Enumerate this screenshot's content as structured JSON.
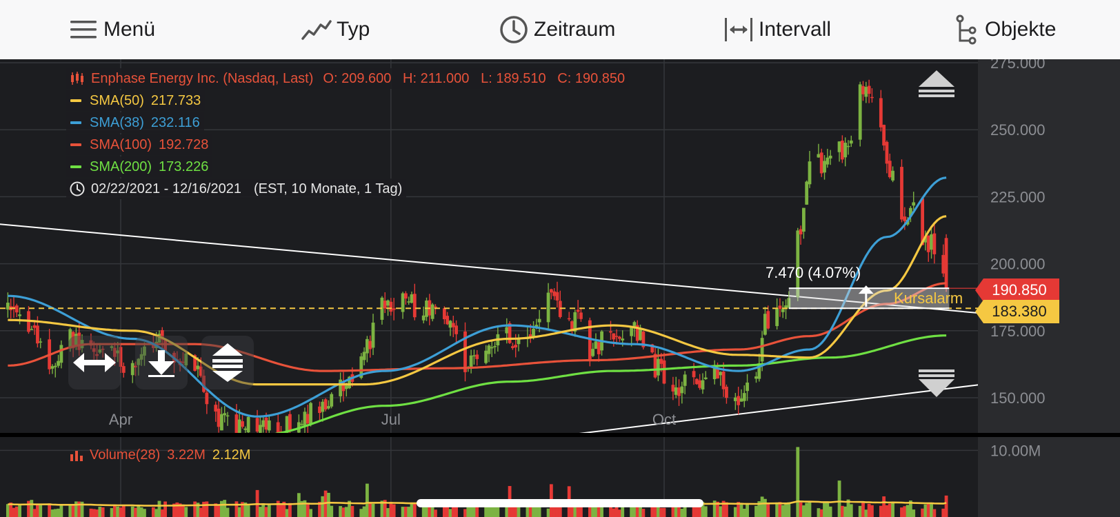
{
  "toolbar": {
    "menu": {
      "label": "Menü",
      "icon": "menu-icon"
    },
    "type": {
      "label": "Typ",
      "icon": "line-chart-icon"
    },
    "period": {
      "label": "Zeitraum",
      "icon": "clock-icon"
    },
    "interval": {
      "label": "Intervall",
      "icon": "interval-icon"
    },
    "objects": {
      "label": "Objekte",
      "icon": "objects-icon"
    }
  },
  "legend": {
    "title": "Enphase Energy Inc. (Nasdaq, Last)",
    "ohlc": "O: 209.600   H: 211.000   L: 189.510   C: 190.850",
    "sma50": {
      "label": "SMA(50)",
      "value": "217.733",
      "color": "#f5c842"
    },
    "sma38": {
      "label": "SMA(38)",
      "value": "232.116",
      "color": "#3d9fd6"
    },
    "sma100": {
      "label": "SMA(100)",
      "value": "192.728",
      "color": "#e8523a"
    },
    "sma200": {
      "label": "SMA(200)",
      "value": "173.226",
      "color": "#6fe043"
    },
    "range": "02/22/2021 - 12/16/2021",
    "range_info": "(EST, 10 Monate, 1 Tag)",
    "volume_label": "Volume(28)",
    "volume_value": "3.22M",
    "volume_avg": "2.12M"
  },
  "annotations": {
    "measure": "7.470 (4.07%)",
    "alarm": "Kursalarm",
    "last_price": "190.850",
    "alarm_price": "183.380"
  },
  "colors": {
    "up": "#7cb342",
    "down": "#e53935",
    "last_price_tag": "#e53935",
    "alarm_tag": "#f5c842",
    "background": "#1c1d20"
  },
  "chart_data": {
    "type": "candlestick",
    "symbol": "Enphase Energy Inc. (Nasdaq, Last)",
    "ylim": [
      140,
      280
    ],
    "y_ticks": [
      "275.000",
      "250.000",
      "225.000",
      "200.000",
      "175.000",
      "150.000"
    ],
    "x_ticks": [
      "Apr",
      "Jul",
      "Oct"
    ],
    "last": {
      "open": 209.6,
      "high": 211.0,
      "low": 189.51,
      "close": 190.85
    },
    "price_anchors": [
      [
        "2021-02-22",
        182
      ],
      [
        "2021-03-01",
        178
      ],
      [
        "2021-03-08",
        160
      ],
      [
        "2021-03-15",
        172
      ],
      [
        "2021-03-22",
        167
      ],
      [
        "2021-03-29",
        166
      ],
      [
        "2021-04-05",
        160
      ],
      [
        "2021-04-12",
        170
      ],
      [
        "2021-04-19",
        167
      ],
      [
        "2021-04-26",
        162
      ],
      [
        "2021-05-03",
        143
      ],
      [
        "2021-05-10",
        138
      ],
      [
        "2021-05-17",
        140
      ],
      [
        "2021-05-24",
        138
      ],
      [
        "2021-06-01",
        144
      ],
      [
        "2021-06-08",
        146
      ],
      [
        "2021-06-15",
        153
      ],
      [
        "2021-06-22",
        168
      ],
      [
        "2021-06-29",
        186
      ],
      [
        "2021-07-06",
        185
      ],
      [
        "2021-07-13",
        183
      ],
      [
        "2021-07-20",
        180
      ],
      [
        "2021-07-27",
        162
      ],
      [
        "2021-08-03",
        172
      ],
      [
        "2021-08-10",
        173
      ],
      [
        "2021-08-17",
        174
      ],
      [
        "2021-08-24",
        187
      ],
      [
        "2021-08-31",
        180
      ],
      [
        "2021-09-07",
        168
      ],
      [
        "2021-09-14",
        174
      ],
      [
        "2021-09-21",
        175
      ],
      [
        "2021-09-28",
        162
      ],
      [
        "2021-10-05",
        155
      ],
      [
        "2021-10-12",
        154
      ],
      [
        "2021-10-19",
        158
      ],
      [
        "2021-10-26",
        148
      ],
      [
        "2021-11-01",
        162
      ],
      [
        "2021-11-05",
        180
      ],
      [
        "2021-11-09",
        185
      ],
      [
        "2021-11-12",
        183
      ],
      [
        "2021-11-15",
        210
      ],
      [
        "2021-11-19",
        235
      ],
      [
        "2021-11-26",
        240
      ],
      [
        "2021-12-03",
        245
      ],
      [
        "2021-12-07",
        267
      ],
      [
        "2021-12-10",
        258
      ],
      [
        "2021-12-13",
        251
      ],
      [
        "2021-12-15",
        236
      ],
      [
        "2021-12-20",
        220
      ],
      [
        "2021-12-24",
        221
      ],
      [
        "2021-12-29",
        206
      ],
      [
        "2021-12-31",
        208
      ],
      [
        "2022-01-04",
        190.85
      ]
    ],
    "sma50_anchors": [
      [
        "2021-02-22",
        179
      ],
      [
        "2021-04-05",
        175
      ],
      [
        "2021-05-17",
        155
      ],
      [
        "2021-06-22",
        155
      ],
      [
        "2021-08-10",
        172
      ],
      [
        "2021-09-14",
        177
      ],
      [
        "2021-10-26",
        166
      ],
      [
        "2021-11-19",
        165
      ],
      [
        "2021-12-15",
        190
      ],
      [
        "2022-01-04",
        217.733
      ]
    ],
    "sma38_anchors": [
      [
        "2021-02-22",
        188
      ],
      [
        "2021-04-05",
        172
      ],
      [
        "2021-05-17",
        143
      ],
      [
        "2021-06-29",
        160
      ],
      [
        "2021-08-10",
        177
      ],
      [
        "2021-09-21",
        170
      ],
      [
        "2021-10-26",
        160
      ],
      [
        "2021-11-19",
        168
      ],
      [
        "2021-12-15",
        210
      ],
      [
        "2022-01-04",
        232.116
      ]
    ],
    "sma100_anchors": [
      [
        "2021-02-22",
        162
      ],
      [
        "2021-03-22",
        170
      ],
      [
        "2021-04-26",
        170
      ],
      [
        "2021-06-08",
        160
      ],
      [
        "2021-07-20",
        161
      ],
      [
        "2021-09-07",
        164
      ],
      [
        "2021-10-26",
        168
      ],
      [
        "2021-11-19",
        173
      ],
      [
        "2021-12-15",
        185
      ],
      [
        "2022-01-04",
        192.728
      ]
    ],
    "sma200_anchors": [
      [
        "2021-05-17",
        136
      ],
      [
        "2021-06-29",
        147
      ],
      [
        "2021-08-10",
        156
      ],
      [
        "2021-09-14",
        160
      ],
      [
        "2021-10-26",
        162
      ],
      [
        "2021-11-26",
        165
      ],
      [
        "2022-01-04",
        173.226
      ]
    ],
    "trendlines": [
      {
        "from": [
          "2021-01-08",
          219
        ],
        "to": [
          "2022-01-31",
          180
        ]
      },
      {
        "from": [
          "2021-07-08",
          129
        ],
        "to": [
          "2022-01-31",
          157
        ]
      }
    ],
    "alarm_level": 183.38,
    "measure_zone": [
      183.38,
      190.85
    ],
    "volume": {
      "ylim": [
        0,
        12
      ],
      "y_ticks": [
        "10.00M"
      ],
      "unit": "M",
      "last": 3.22,
      "average": 2.12,
      "peak_date": "2021-11-15",
      "peak": 10.5
    }
  }
}
